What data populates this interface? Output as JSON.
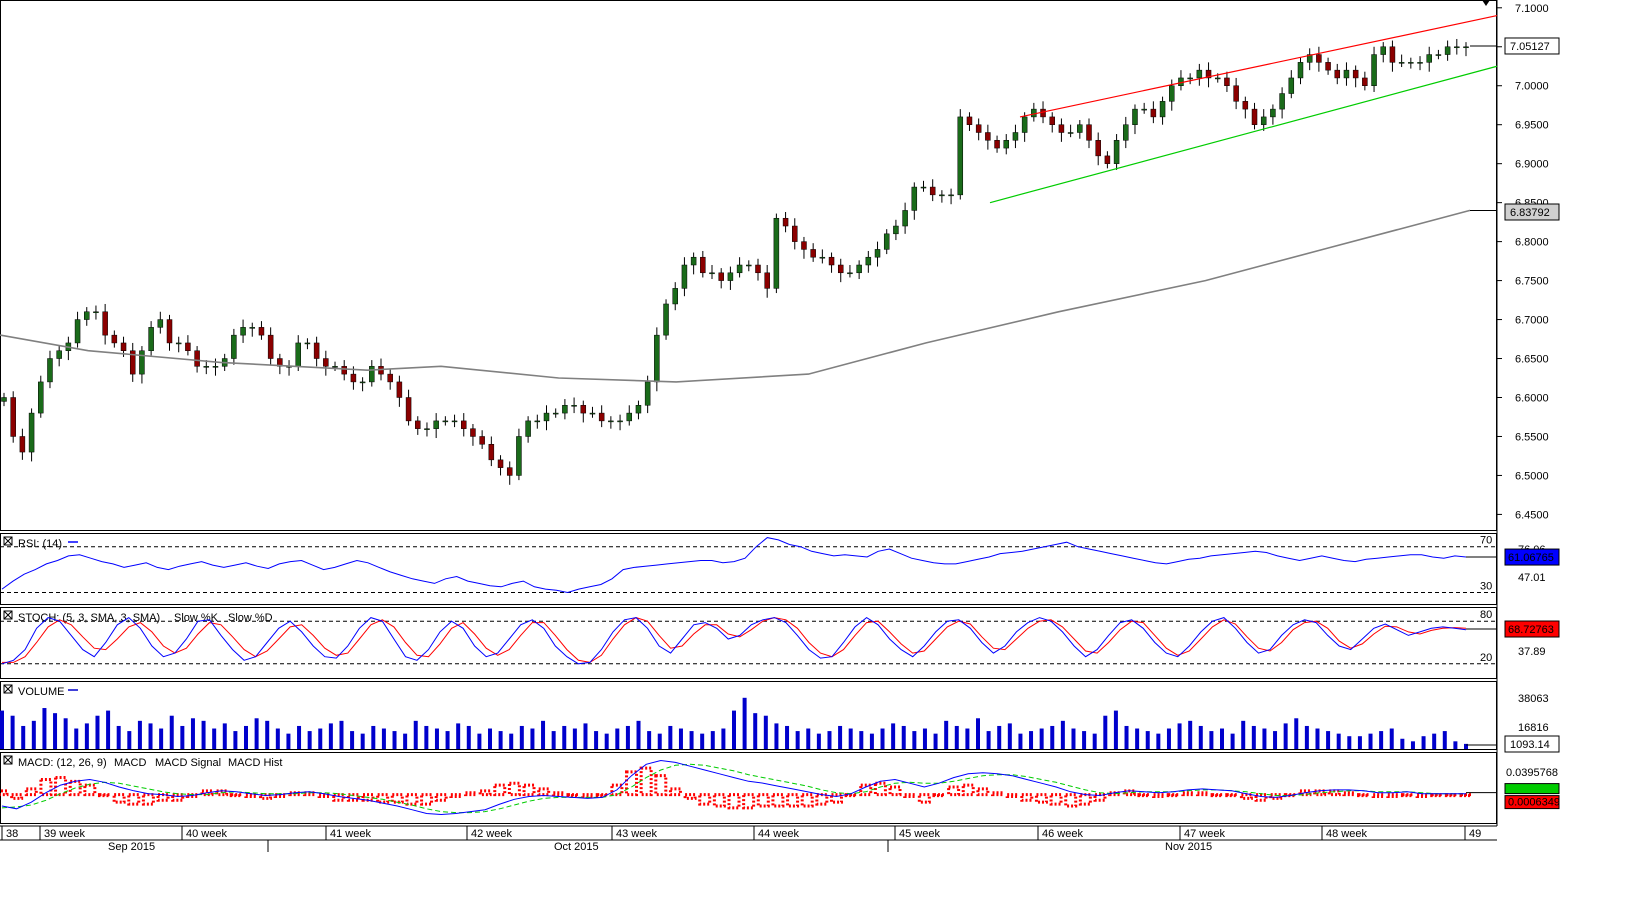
{
  "chart_data": [
    {
      "type": "candlestick",
      "name": "price",
      "yaxis_ticks": [
        "7.1000",
        "7.0500",
        "7.0000",
        "6.9500",
        "6.9000",
        "6.8500",
        "6.8000",
        "6.7500",
        "6.7000",
        "6.6500",
        "6.6000",
        "6.5500",
        "6.5000",
        "6.4500"
      ],
      "ylim": [
        6.43,
        7.11
      ],
      "current_price_label": "7.05127",
      "sma_label": "6.83792",
      "close_series_approx": [
        6.6,
        6.55,
        6.53,
        6.58,
        6.62,
        6.65,
        6.66,
        6.67,
        6.7,
        6.71,
        6.71,
        6.68,
        6.67,
        6.66,
        6.63,
        6.66,
        6.69,
        6.7,
        6.67,
        6.67,
        6.66,
        6.64,
        6.64,
        6.64,
        6.65,
        6.68,
        6.69,
        6.69,
        6.68,
        6.65,
        6.64,
        6.64,
        6.67,
        6.67,
        6.65,
        6.64,
        6.64,
        6.63,
        6.62,
        6.62,
        6.64,
        6.63,
        6.62,
        6.6,
        6.57,
        6.56,
        6.56,
        6.57,
        6.57,
        6.57,
        6.56,
        6.55,
        6.54,
        6.52,
        6.51,
        6.5,
        6.55,
        6.57,
        6.57,
        6.58,
        6.58,
        6.59,
        6.59,
        6.58,
        6.58,
        6.57,
        6.57,
        6.57,
        6.58,
        6.59,
        6.62,
        6.68,
        6.72,
        6.74,
        6.77,
        6.78,
        6.76,
        6.76,
        6.75,
        6.76,
        6.77,
        6.77,
        6.76,
        6.74,
        6.83,
        6.82,
        6.8,
        6.79,
        6.78,
        6.78,
        6.77,
        6.76,
        6.76,
        6.77,
        6.78,
        6.79,
        6.81,
        6.82,
        6.84,
        6.87,
        6.87,
        6.86,
        6.86,
        6.86,
        6.96,
        6.95,
        6.94,
        6.93,
        6.92,
        6.93,
        6.94,
        6.96,
        6.97,
        6.96,
        6.95,
        6.94,
        6.94,
        6.95,
        6.93,
        6.91,
        6.9,
        6.93,
        6.95,
        6.97,
        6.97,
        6.96,
        6.98,
        7.0,
        7.01,
        7.01,
        7.02,
        7.01,
        7.01,
        7.0,
        6.98,
        6.97,
        6.95,
        6.96,
        6.97,
        6.99,
        7.01,
        7.03,
        7.04,
        7.03,
        7.02,
        7.01,
        7.02,
        7.01,
        7.0,
        7.04,
        7.05,
        7.03,
        7.03,
        7.03,
        7.03,
        7.04,
        7.04,
        7.05,
        7.05,
        7.05
      ],
      "sma_points": [
        [
          0,
          6.68
        ],
        [
          0.06,
          6.66
        ],
        [
          0.15,
          6.645
        ],
        [
          0.25,
          6.635
        ],
        [
          0.3,
          6.64
        ],
        [
          0.38,
          6.625
        ],
        [
          0.46,
          6.62
        ],
        [
          0.55,
          6.63
        ],
        [
          0.63,
          6.67
        ],
        [
          0.72,
          6.71
        ],
        [
          0.82,
          6.75
        ],
        [
          0.9,
          6.79
        ],
        [
          1.0,
          6.84
        ]
      ],
      "channel_upper": [
        [
          6.97,
          6.96
        ],
        [
          1.0,
          7.09
        ]
      ],
      "channel_lower": [
        [
          6.97,
          6.85
        ],
        [
          1.0,
          7.025
        ]
      ]
    },
    {
      "type": "line",
      "name": "rsi",
      "title": "RSI: (14)",
      "levels": [
        "70",
        "30"
      ],
      "right_labels": [
        "76.06",
        "47.01"
      ],
      "current_label": "61.06765",
      "values": [
        33,
        40,
        46,
        50,
        55,
        58,
        62,
        63,
        60,
        57,
        55,
        52,
        54,
        56,
        52,
        50,
        53,
        55,
        57,
        54,
        52,
        54,
        56,
        53,
        51,
        55,
        57,
        58,
        54,
        50,
        52,
        55,
        58,
        56,
        52,
        48,
        45,
        42,
        40,
        38,
        42,
        44,
        40,
        38,
        36,
        35,
        38,
        40,
        35,
        33,
        32,
        30,
        33,
        35,
        37,
        42,
        50,
        52,
        53,
        54,
        55,
        56,
        57,
        58,
        58,
        56,
        57,
        60,
        70,
        78,
        76,
        72,
        70,
        66,
        64,
        62,
        63,
        62,
        61,
        66,
        68,
        64,
        60,
        58,
        56,
        55,
        55,
        57,
        59,
        61,
        64,
        65,
        66,
        68,
        70,
        72,
        74,
        70,
        68,
        66,
        64,
        62,
        60,
        58,
        56,
        55,
        57,
        59,
        60,
        62,
        63,
        64,
        65,
        66,
        65,
        62,
        60,
        58,
        60,
        62,
        60,
        58,
        57,
        59,
        60,
        61,
        62,
        63,
        63,
        61,
        60,
        62,
        61
      ]
    },
    {
      "type": "line",
      "name": "stoch",
      "title": "STOCH: (5, 3, SMA, 3, SMA)",
      "legend": [
        "Slow %K",
        "Slow %D"
      ],
      "levels": [
        "80",
        "20"
      ],
      "right_labels": [
        "37.89"
      ],
      "current_label": "68.72763",
      "k_values": [
        20,
        25,
        40,
        70,
        85,
        80,
        60,
        40,
        30,
        50,
        75,
        85,
        70,
        45,
        30,
        35,
        55,
        80,
        82,
        60,
        40,
        25,
        30,
        50,
        70,
        80,
        65,
        45,
        30,
        28,
        45,
        70,
        85,
        80,
        55,
        30,
        25,
        40,
        65,
        80,
        70,
        45,
        30,
        35,
        55,
        75,
        82,
        70,
        45,
        30,
        20,
        22,
        40,
        65,
        82,
        85,
        70,
        45,
        35,
        55,
        75,
        78,
        70,
        55,
        60,
        75,
        82,
        85,
        78,
        60,
        40,
        28,
        30,
        50,
        72,
        85,
        75,
        55,
        40,
        30,
        45,
        65,
        80,
        82,
        70,
        50,
        35,
        45,
        65,
        78,
        85,
        80,
        65,
        45,
        30,
        40,
        60,
        78,
        82,
        70,
        50,
        35,
        30,
        45,
        65,
        80,
        85,
        70,
        50,
        35,
        40,
        60,
        75,
        82,
        78,
        60,
        45,
        40,
        55,
        70,
        76,
        68,
        60,
        65,
        70,
        72,
        70,
        68
      ],
      "d_values": [
        22,
        22,
        30,
        50,
        72,
        82,
        75,
        58,
        42,
        40,
        55,
        72,
        78,
        65,
        45,
        35,
        42,
        62,
        78,
        75,
        58,
        40,
        30,
        38,
        55,
        72,
        75,
        60,
        42,
        32,
        35,
        55,
        75,
        82,
        72,
        50,
        32,
        30,
        48,
        70,
        78,
        62,
        42,
        32,
        40,
        60,
        78,
        78,
        60,
        40,
        25,
        22,
        32,
        55,
        75,
        85,
        80,
        60,
        42,
        45,
        62,
        75,
        75,
        62,
        58,
        68,
        80,
        85,
        82,
        70,
        50,
        35,
        30,
        40,
        60,
        78,
        80,
        65,
        48,
        35,
        38,
        55,
        72,
        80,
        76,
        58,
        42,
        40,
        55,
        70,
        80,
        82,
        72,
        55,
        38,
        35,
        50,
        68,
        80,
        78,
        60,
        42,
        32,
        38,
        55,
        72,
        82,
        76,
        58,
        42,
        38,
        50,
        68,
        78,
        80,
        70,
        52,
        42,
        48,
        62,
        73,
        72,
        65,
        62,
        67,
        70,
        71,
        70
      ]
    },
    {
      "type": "bar",
      "name": "volume",
      "title": "VOLUME",
      "right_labels": [
        "38063",
        "16816"
      ],
      "current_label": "1093.14",
      "values": [
        30,
        26,
        18,
        22,
        32,
        28,
        24,
        16,
        20,
        26,
        30,
        18,
        14,
        22,
        20,
        16,
        26,
        18,
        24,
        22,
        16,
        20,
        14,
        18,
        24,
        22,
        16,
        12,
        18,
        14,
        16,
        20,
        22,
        14,
        12,
        18,
        16,
        14,
        12,
        22,
        18,
        16,
        14,
        20,
        18,
        12,
        16,
        14,
        12,
        18,
        16,
        22,
        14,
        18,
        16,
        20,
        14,
        12,
        16,
        18,
        22,
        14,
        12,
        18,
        16,
        14,
        12,
        14,
        16,
        30,
        40,
        28,
        26,
        20,
        18,
        14,
        16,
        12,
        14,
        18,
        16,
        14,
        12,
        16,
        20,
        18,
        14,
        16,
        12,
        22,
        18,
        16,
        24,
        14,
        18,
        20,
        12,
        14,
        16,
        18,
        22,
        16,
        14,
        12,
        26,
        30,
        18,
        16,
        14,
        12,
        16,
        20,
        22,
        18,
        14,
        16,
        12,
        22,
        18,
        16,
        14,
        20,
        24,
        18,
        16,
        14,
        12,
        10,
        10,
        12,
        14,
        16,
        8,
        6,
        10,
        12,
        14,
        6,
        4
      ]
    },
    {
      "type": "line",
      "name": "macd",
      "title": "MACD: (12, 26, 9)",
      "legend": [
        "MACD",
        "MACD Signal",
        "MACD Hist"
      ],
      "right_labels": [
        "0.0395768"
      ],
      "current_label": "0.0006349",
      "macd_values": [
        -0.012,
        -0.015,
        -0.008,
        0.002,
        0.01,
        0.014,
        0.016,
        0.013,
        0.008,
        0.004,
        0.001,
        0.0,
        -0.002,
        -0.001,
        0.002,
        0.004,
        0.003,
        0.001,
        -0.001,
        0.0,
        0.002,
        0.003,
        0.001,
        -0.002,
        -0.004,
        -0.006,
        -0.009,
        -0.012,
        -0.016,
        -0.02,
        -0.021,
        -0.02,
        -0.018,
        -0.016,
        -0.01,
        -0.005,
        -0.002,
        -0.001,
        -0.002,
        -0.003,
        -0.004,
        -0.003,
        0.005,
        0.02,
        0.032,
        0.036,
        0.034,
        0.03,
        0.026,
        0.022,
        0.018,
        0.014,
        0.012,
        0.009,
        0.006,
        0.003,
        0.0,
        -0.002,
        0.001,
        0.008,
        0.014,
        0.016,
        0.012,
        0.008,
        0.012,
        0.018,
        0.022,
        0.023,
        0.022,
        0.02,
        0.016,
        0.012,
        0.008,
        0.003,
        0.0,
        -0.001,
        0.002,
        0.004,
        0.003,
        0.002,
        0.003,
        0.005,
        0.006,
        0.005,
        0.004,
        0.001,
        -0.002,
        -0.003,
        -0.001,
        0.002,
        0.004,
        0.005,
        0.005,
        0.004,
        0.002,
        0.002,
        0.003,
        0.001,
        0.001,
        0.001,
        0.001
      ],
      "signal_values": [
        -0.014,
        -0.013,
        -0.011,
        -0.006,
        0.001,
        0.007,
        0.011,
        0.013,
        0.012,
        0.009,
        0.006,
        0.003,
        0.001,
        0.0,
        0.0,
        0.002,
        0.003,
        0.002,
        0.001,
        0.001,
        0.001,
        0.002,
        0.002,
        0.001,
        -0.001,
        -0.003,
        -0.005,
        -0.008,
        -0.011,
        -0.015,
        -0.018,
        -0.019,
        -0.019,
        -0.018,
        -0.015,
        -0.011,
        -0.007,
        -0.004,
        -0.003,
        -0.003,
        -0.003,
        -0.003,
        0.0,
        0.008,
        0.018,
        0.026,
        0.031,
        0.032,
        0.031,
        0.028,
        0.025,
        0.021,
        0.018,
        0.015,
        0.012,
        0.009,
        0.005,
        0.002,
        0.001,
        0.003,
        0.008,
        0.012,
        0.013,
        0.012,
        0.012,
        0.014,
        0.017,
        0.02,
        0.021,
        0.021,
        0.019,
        0.016,
        0.013,
        0.009,
        0.005,
        0.002,
        0.001,
        0.002,
        0.003,
        0.003,
        0.003,
        0.004,
        0.005,
        0.005,
        0.004,
        0.003,
        0.001,
        -0.001,
        -0.001,
        0.0,
        0.002,
        0.003,
        0.004,
        0.004,
        0.003,
        0.003,
        0.003,
        0.002,
        0.001,
        0.001,
        0.001
      ]
    }
  ],
  "x_axis": {
    "week_labels": [
      "38",
      "39 week",
      "40 week",
      "41 week",
      "42 week",
      "43 week",
      "44 week",
      "45 week",
      "46 week",
      "47 week",
      "48 week",
      "49"
    ],
    "month_labels": [
      "Sep 2015",
      "Oct 2015",
      "Nov 2015"
    ]
  },
  "colors": {
    "up": "#1a6b1a",
    "down": "#8b0000",
    "sma": "#808080",
    "channel_upper": "#ff0000",
    "channel_lower": "#00cc00",
    "rsi": "#0000ff",
    "stoch_k": "#0000ff",
    "stoch_d": "#ff0000",
    "volume": "#0000cc",
    "macd": "#0000ff",
    "macd_signal": "#00cc00",
    "macd_hist": "#ff0000",
    "label_bg_current": "#0000ff",
    "label_bg_red": "#ff0000",
    "label_bg_green": "#00cc00"
  }
}
